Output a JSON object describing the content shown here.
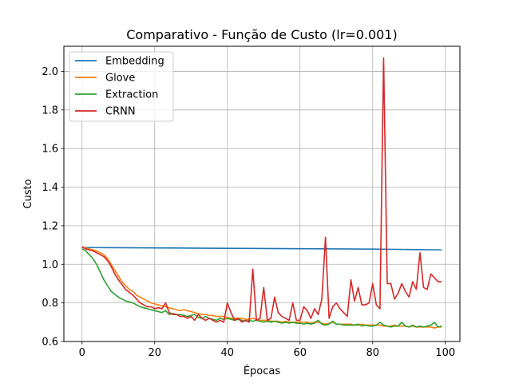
{
  "chart_data": {
    "type": "line",
    "title": "Comparativo - Função de Custo (lr=0.001)",
    "xlabel": "Épocas",
    "ylabel": "Custo",
    "xlim": [
      -5,
      104
    ],
    "ylim": [
      0.6,
      2.13
    ],
    "xticks": [
      "0",
      "20",
      "40",
      "60",
      "80",
      "100"
    ],
    "xtick_values": [
      0,
      20,
      40,
      60,
      80,
      100
    ],
    "yticks": [
      "0.6",
      "0.8",
      "1.0",
      "1.2",
      "1.4",
      "1.6",
      "1.8",
      "2.0"
    ],
    "ytick_values": [
      0.6,
      0.8,
      1.0,
      1.2,
      1.4,
      1.6,
      1.8,
      2.0
    ],
    "grid": true,
    "legend_position": "top-left",
    "series": [
      {
        "name": "Embedding",
        "color": "#1f77b4",
        "x": [
          0,
          10,
          20,
          30,
          40,
          50,
          60,
          70,
          80,
          90,
          99
        ],
        "values": [
          1.087,
          1.086,
          1.085,
          1.084,
          1.083,
          1.082,
          1.081,
          1.08,
          1.079,
          1.077,
          1.075
        ]
      },
      {
        "name": "Glove",
        "color": "#ff7f0e",
        "x": [
          0,
          1,
          2,
          3,
          4,
          5,
          6,
          7,
          8,
          9,
          10,
          11,
          12,
          13,
          14,
          15,
          16,
          17,
          18,
          19,
          20,
          21,
          22,
          23,
          24,
          25,
          26,
          27,
          28,
          29,
          30,
          31,
          32,
          33,
          34,
          35,
          36,
          37,
          38,
          39,
          40,
          41,
          42,
          43,
          44,
          45,
          46,
          47,
          48,
          49,
          50,
          51,
          52,
          53,
          54,
          55,
          56,
          57,
          58,
          59,
          60,
          61,
          62,
          63,
          64,
          65,
          66,
          67,
          68,
          69,
          70,
          71,
          72,
          73,
          74,
          75,
          76,
          77,
          78,
          79,
          80,
          81,
          82,
          83,
          84,
          85,
          86,
          87,
          88,
          89,
          90,
          91,
          92,
          93,
          94,
          95,
          96,
          97,
          98,
          99
        ],
        "values": [
          1.09,
          1.085,
          1.08,
          1.075,
          1.07,
          1.06,
          1.05,
          1.03,
          1.0,
          0.97,
          0.94,
          0.91,
          0.89,
          0.87,
          0.86,
          0.84,
          0.83,
          0.82,
          0.81,
          0.8,
          0.795,
          0.79,
          0.785,
          0.78,
          0.775,
          0.77,
          0.765,
          0.76,
          0.765,
          0.76,
          0.755,
          0.75,
          0.745,
          0.74,
          0.74,
          0.735,
          0.735,
          0.73,
          0.73,
          0.73,
          0.725,
          0.72,
          0.72,
          0.72,
          0.72,
          0.715,
          0.715,
          0.72,
          0.715,
          0.71,
          0.71,
          0.71,
          0.705,
          0.705,
          0.705,
          0.7,
          0.705,
          0.7,
          0.7,
          0.7,
          0.7,
          0.7,
          0.7,
          0.695,
          0.7,
          0.7,
          0.695,
          0.69,
          0.695,
          0.7,
          0.69,
          0.69,
          0.69,
          0.69,
          0.69,
          0.685,
          0.685,
          0.69,
          0.685,
          0.685,
          0.685,
          0.685,
          0.685,
          0.68,
          0.68,
          0.68,
          0.685,
          0.68,
          0.68,
          0.68,
          0.675,
          0.68,
          0.675,
          0.675,
          0.675,
          0.675,
          0.675,
          0.67,
          0.675,
          0.675
        ]
      },
      {
        "name": "Extraction",
        "color": "#2ca02c",
        "x": [
          0,
          1,
          2,
          3,
          4,
          5,
          6,
          7,
          8,
          9,
          10,
          11,
          12,
          13,
          14,
          15,
          16,
          17,
          18,
          19,
          20,
          21,
          22,
          23,
          24,
          25,
          26,
          27,
          28,
          29,
          30,
          31,
          32,
          33,
          34,
          35,
          36,
          37,
          38,
          39,
          40,
          41,
          42,
          43,
          44,
          45,
          46,
          47,
          48,
          49,
          50,
          51,
          52,
          53,
          54,
          55,
          56,
          57,
          58,
          59,
          60,
          61,
          62,
          63,
          64,
          65,
          66,
          67,
          68,
          69,
          70,
          71,
          72,
          73,
          74,
          75,
          76,
          77,
          78,
          79,
          80,
          81,
          82,
          83,
          84,
          85,
          86,
          87,
          88,
          89,
          90,
          91,
          92,
          93,
          94,
          95,
          96,
          97,
          98,
          99
        ],
        "values": [
          1.08,
          1.07,
          1.05,
          1.03,
          1.0,
          0.96,
          0.92,
          0.89,
          0.86,
          0.845,
          0.83,
          0.82,
          0.81,
          0.805,
          0.8,
          0.79,
          0.78,
          0.775,
          0.77,
          0.765,
          0.76,
          0.755,
          0.75,
          0.76,
          0.74,
          0.745,
          0.74,
          0.74,
          0.735,
          0.73,
          0.735,
          0.74,
          0.725,
          0.72,
          0.73,
          0.72,
          0.715,
          0.71,
          0.72,
          0.715,
          0.72,
          0.715,
          0.71,
          0.715,
          0.71,
          0.705,
          0.71,
          0.705,
          0.71,
          0.705,
          0.7,
          0.705,
          0.7,
          0.705,
          0.7,
          0.695,
          0.7,
          0.695,
          0.7,
          0.695,
          0.695,
          0.69,
          0.695,
          0.69,
          0.695,
          0.71,
          0.69,
          0.685,
          0.69,
          0.705,
          0.69,
          0.69,
          0.685,
          0.685,
          0.685,
          0.685,
          0.69,
          0.68,
          0.685,
          0.68,
          0.68,
          0.685,
          0.7,
          0.685,
          0.68,
          0.675,
          0.68,
          0.68,
          0.7,
          0.68,
          0.675,
          0.685,
          0.675,
          0.68,
          0.675,
          0.68,
          0.685,
          0.7,
          0.675,
          0.68
        ]
      },
      {
        "name": "CRNN",
        "color": "#d62728",
        "x": [
          0,
          1,
          2,
          3,
          4,
          5,
          6,
          7,
          8,
          9,
          10,
          11,
          12,
          13,
          14,
          15,
          16,
          17,
          18,
          19,
          20,
          21,
          22,
          23,
          24,
          25,
          26,
          27,
          28,
          29,
          30,
          31,
          32,
          33,
          34,
          35,
          36,
          37,
          38,
          39,
          40,
          41,
          42,
          43,
          44,
          45,
          46,
          47,
          48,
          49,
          50,
          51,
          52,
          53,
          54,
          55,
          56,
          57,
          58,
          59,
          60,
          61,
          62,
          63,
          64,
          65,
          66,
          67,
          68,
          69,
          70,
          71,
          72,
          73,
          74,
          75,
          76,
          77,
          78,
          79,
          80,
          81,
          82,
          83,
          84,
          85,
          86,
          87,
          88,
          89,
          90,
          91,
          92,
          93,
          94,
          95,
          96,
          97,
          98,
          99
        ],
        "values": [
          1.09,
          1.08,
          1.075,
          1.07,
          1.06,
          1.05,
          1.04,
          1.02,
          0.99,
          0.95,
          0.92,
          0.895,
          0.87,
          0.855,
          0.84,
          0.82,
          0.8,
          0.79,
          0.78,
          0.78,
          0.77,
          0.775,
          0.77,
          0.8,
          0.75,
          0.74,
          0.74,
          0.73,
          0.73,
          0.72,
          0.73,
          0.71,
          0.74,
          0.72,
          0.71,
          0.72,
          0.71,
          0.7,
          0.71,
          0.7,
          0.8,
          0.75,
          0.71,
          0.72,
          0.7,
          0.71,
          0.7,
          0.975,
          0.71,
          0.72,
          0.88,
          0.71,
          0.72,
          0.83,
          0.75,
          0.73,
          0.72,
          0.71,
          0.8,
          0.71,
          0.71,
          0.78,
          0.76,
          0.72,
          0.77,
          0.74,
          0.82,
          1.14,
          0.72,
          0.78,
          0.8,
          0.77,
          0.75,
          0.73,
          0.92,
          0.81,
          0.88,
          0.79,
          0.79,
          0.8,
          0.9,
          0.79,
          0.77,
          2.07,
          0.9,
          0.9,
          0.82,
          0.85,
          0.9,
          0.86,
          0.83,
          0.91,
          0.87,
          1.06,
          0.88,
          0.87,
          0.95,
          0.93,
          0.91,
          0.91
        ]
      }
    ]
  }
}
